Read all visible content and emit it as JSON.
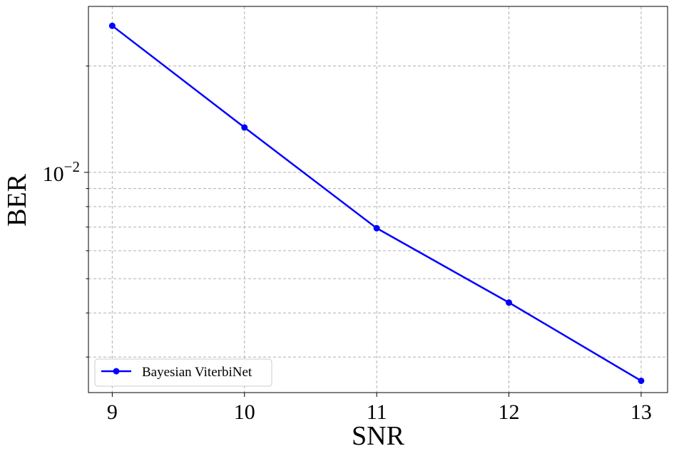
{
  "chart_data": {
    "type": "line",
    "x": [
      9,
      10,
      11,
      12,
      13
    ],
    "series": [
      {
        "name": "Bayesian ViterbiNet",
        "values": [
          0.026,
          0.0134,
          0.00695,
          0.00428,
          0.00257
        ],
        "color": "#0000ff",
        "marker": "circle"
      }
    ],
    "xlabel": "SNR",
    "ylabel": "BER",
    "x_ticks": [
      "9",
      "10",
      "11",
      "12",
      "13"
    ],
    "y_tick_major": {
      "value": 0.01,
      "base": "10",
      "exponent": "−2"
    },
    "y_scale": "log",
    "xlim": [
      8.82,
      13.2
    ],
    "ylim": [
      0.00238,
      0.0295
    ],
    "grid": true,
    "legend": "lower-left"
  }
}
